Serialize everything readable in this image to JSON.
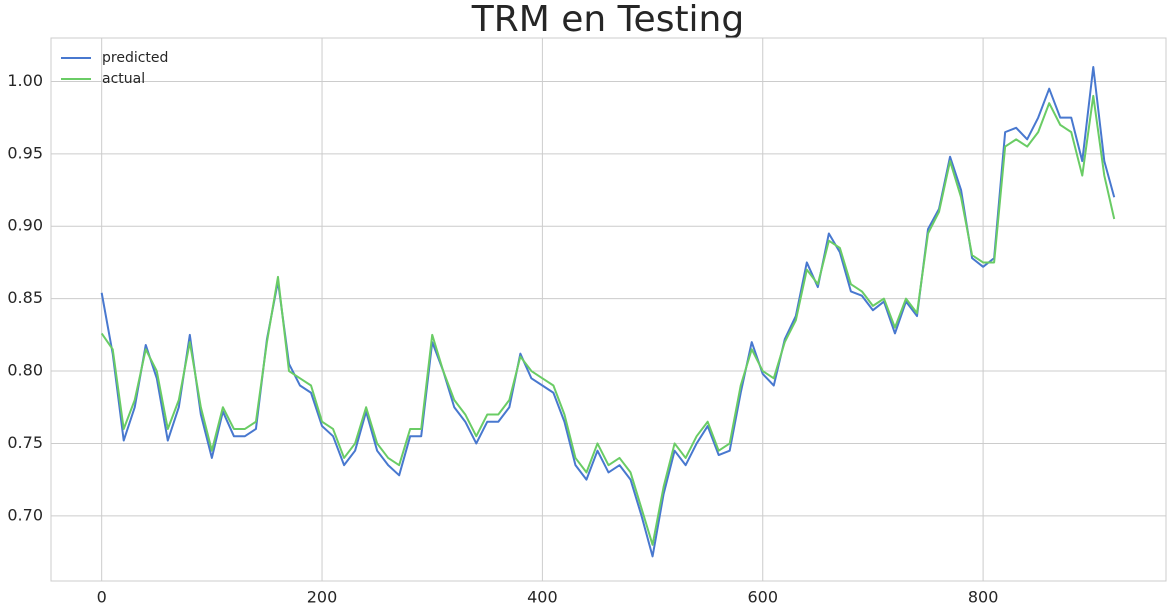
{
  "chart_data": {
    "type": "line",
    "title": "TRM en Testing",
    "x": [
      0,
      10,
      20,
      30,
      40,
      50,
      60,
      70,
      80,
      90,
      100,
      110,
      120,
      130,
      140,
      150,
      160,
      170,
      180,
      190,
      200,
      210,
      220,
      230,
      240,
      250,
      260,
      270,
      280,
      290,
      300,
      310,
      320,
      330,
      340,
      350,
      360,
      370,
      380,
      390,
      400,
      410,
      420,
      430,
      440,
      450,
      460,
      470,
      480,
      490,
      500,
      510,
      520,
      530,
      540,
      550,
      560,
      570,
      580,
      590,
      600,
      610,
      620,
      630,
      640,
      650,
      660,
      670,
      680,
      690,
      700,
      710,
      720,
      730,
      740,
      750,
      760,
      770,
      780,
      790,
      800,
      810,
      820,
      830,
      840,
      850,
      860,
      870,
      880,
      890,
      900,
      910,
      919
    ],
    "series": [
      {
        "name": "predicted",
        "color": "#4878cf",
        "values": [
          0.854,
          0.812,
          0.752,
          0.775,
          0.818,
          0.795,
          0.752,
          0.775,
          0.825,
          0.77,
          0.74,
          0.772,
          0.755,
          0.755,
          0.76,
          0.822,
          0.862,
          0.805,
          0.79,
          0.785,
          0.762,
          0.755,
          0.735,
          0.745,
          0.772,
          0.745,
          0.735,
          0.728,
          0.755,
          0.755,
          0.82,
          0.8,
          0.775,
          0.765,
          0.75,
          0.765,
          0.765,
          0.775,
          0.812,
          0.795,
          0.79,
          0.785,
          0.765,
          0.735,
          0.725,
          0.745,
          0.73,
          0.735,
          0.725,
          0.7,
          0.672,
          0.715,
          0.745,
          0.735,
          0.75,
          0.762,
          0.742,
          0.745,
          0.785,
          0.82,
          0.798,
          0.79,
          0.822,
          0.838,
          0.875,
          0.858,
          0.895,
          0.882,
          0.855,
          0.852,
          0.842,
          0.848,
          0.826,
          0.848,
          0.838,
          0.898,
          0.912,
          0.948,
          0.925,
          0.878,
          0.872,
          0.878,
          0.965,
          0.968,
          0.96,
          0.975,
          0.995,
          0.975,
          0.975,
          0.945,
          1.01,
          0.945,
          0.92
        ]
      },
      {
        "name": "actual",
        "color": "#6acc65",
        "values": [
          0.826,
          0.815,
          0.76,
          0.78,
          0.815,
          0.8,
          0.76,
          0.78,
          0.82,
          0.775,
          0.745,
          0.775,
          0.76,
          0.76,
          0.765,
          0.82,
          0.865,
          0.8,
          0.795,
          0.79,
          0.765,
          0.76,
          0.74,
          0.75,
          0.775,
          0.75,
          0.74,
          0.735,
          0.76,
          0.76,
          0.825,
          0.8,
          0.78,
          0.77,
          0.755,
          0.77,
          0.77,
          0.78,
          0.81,
          0.8,
          0.795,
          0.79,
          0.77,
          0.74,
          0.73,
          0.75,
          0.735,
          0.74,
          0.73,
          0.705,
          0.68,
          0.72,
          0.75,
          0.74,
          0.755,
          0.765,
          0.745,
          0.75,
          0.79,
          0.815,
          0.8,
          0.795,
          0.82,
          0.835,
          0.87,
          0.86,
          0.89,
          0.885,
          0.86,
          0.855,
          0.845,
          0.85,
          0.83,
          0.85,
          0.84,
          0.895,
          0.91,
          0.945,
          0.92,
          0.88,
          0.875,
          0.875,
          0.955,
          0.96,
          0.955,
          0.965,
          0.985,
          0.97,
          0.965,
          0.935,
          0.99,
          0.935,
          0.905
        ]
      }
    ],
    "xlim": [
      -46,
      966
    ],
    "xticks": [
      0,
      200,
      400,
      600,
      800
    ],
    "ylim": [
      0.655,
      1.03
    ],
    "yticks": [
      {
        "value": 0.7,
        "label": "0.70"
      },
      {
        "value": 0.75,
        "label": "0.75"
      },
      {
        "value": 0.8,
        "label": "0.80"
      },
      {
        "value": 0.85,
        "label": "0.85"
      },
      {
        "value": 0.9,
        "label": "0.90"
      },
      {
        "value": 0.95,
        "label": "0.95"
      },
      {
        "value": 1.0,
        "label": "1.00"
      }
    ],
    "grid": true,
    "legend": "upper left"
  }
}
